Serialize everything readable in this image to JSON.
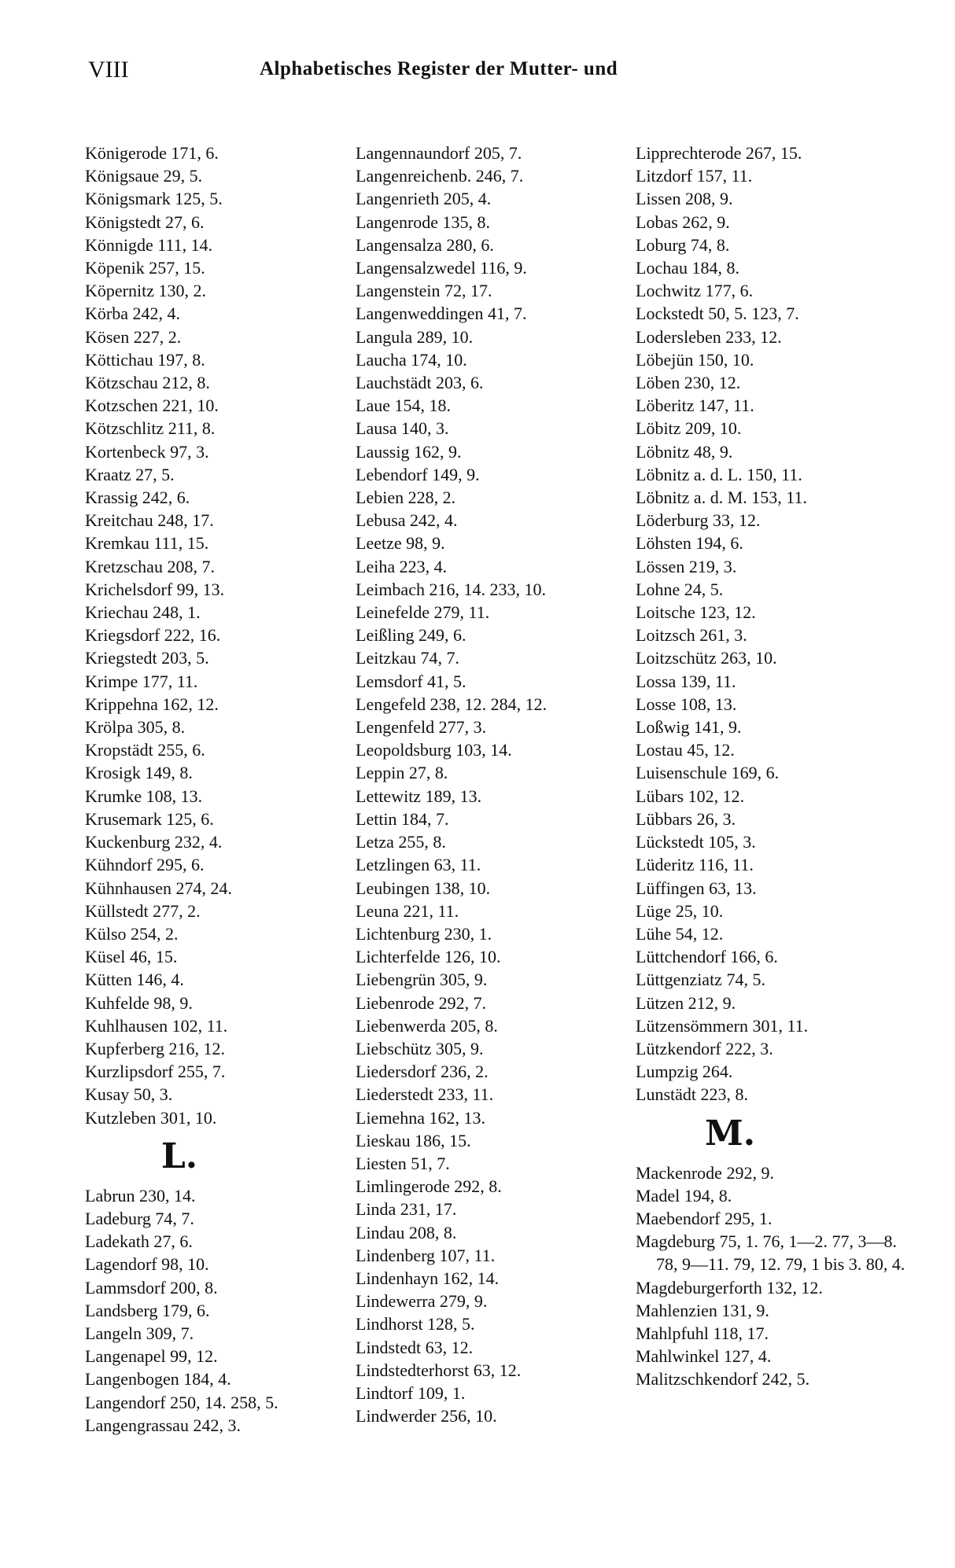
{
  "header": {
    "page_number": "VIII",
    "running_title": "Alphabetisches Register der Mutter- und"
  },
  "columns": [
    {
      "items": [
        {
          "text": "Königerode 171, 6."
        },
        {
          "text": "Königsaue 29, 5."
        },
        {
          "text": "Königsmark 125, 5."
        },
        {
          "text": "Königstedt 27, 6."
        },
        {
          "text": "Könnigde 111, 14."
        },
        {
          "text": "Köpenik 257, 15."
        },
        {
          "text": "Köpernitz 130, 2."
        },
        {
          "text": "Körba 242, 4."
        },
        {
          "text": "Kösen 227, 2."
        },
        {
          "text": "Köttichau 197, 8."
        },
        {
          "text": "Kötzschau 212, 8."
        },
        {
          "text": "Kotzschen 221, 10."
        },
        {
          "text": "Kötzschlitz 211, 8."
        },
        {
          "text": "Kortenbeck 97, 3."
        },
        {
          "text": "Kraatz 27, 5."
        },
        {
          "text": "Krassig 242, 6."
        },
        {
          "text": "Kreitchau 248, 17."
        },
        {
          "text": "Kremkau 111, 15."
        },
        {
          "text": "Kretzschau 208, 7."
        },
        {
          "text": "Krichelsdorf 99, 13."
        },
        {
          "text": "Kriechau 248, 1."
        },
        {
          "text": "Kriegsdorf 222, 16."
        },
        {
          "text": "Kriegstedt 203, 5."
        },
        {
          "text": "Krimpe 177, 11."
        },
        {
          "text": "Krippehna 162, 12."
        },
        {
          "text": "Krölpa 305, 8."
        },
        {
          "text": "Kropstädt 255, 6."
        },
        {
          "text": "Krosigk 149, 8."
        },
        {
          "text": "Krumke 108, 13."
        },
        {
          "text": "Krusemark 125, 6."
        },
        {
          "text": "Kuckenburg 232, 4."
        },
        {
          "text": "Kühndorf 295, 6."
        },
        {
          "text": "Kühnhausen 274, 24."
        },
        {
          "text": "Küllstedt 277, 2."
        },
        {
          "text": "Külso 254, 2."
        },
        {
          "text": "Küsel 46, 15."
        },
        {
          "text": "Kütten 146, 4."
        },
        {
          "text": "Kuhfelde 98, 9."
        },
        {
          "text": "Kuhlhausen 102, 11."
        },
        {
          "text": "Kupferberg 216, 12."
        },
        {
          "text": "Kurzlipsdorf 255, 7."
        },
        {
          "text": "Kusay 50, 3."
        },
        {
          "text": "Kutzleben 301, 10."
        },
        {
          "letter": "L."
        },
        {
          "text": "Labrun 230, 14."
        },
        {
          "text": "Ladeburg 74, 7."
        },
        {
          "text": "Ladekath 27, 6."
        },
        {
          "text": "Lagendorf 98, 10."
        },
        {
          "text": "Lammsdorf 200, 8."
        },
        {
          "text": "Landsberg 179, 6."
        },
        {
          "text": "Langeln 309, 7."
        },
        {
          "text": "Langenapel 99, 12."
        },
        {
          "text": "Langenbogen 184, 4."
        },
        {
          "text": "Langendorf 250, 14. 258, 5."
        },
        {
          "text": "Langengrassau 242, 3."
        }
      ]
    },
    {
      "items": [
        {
          "text": "Langennaundorf 205, 7."
        },
        {
          "text": "Langenreichenb. 246, 7."
        },
        {
          "text": "Langenrieth 205, 4."
        },
        {
          "text": "Langenrode 135, 8."
        },
        {
          "text": "Langensalza 280, 6."
        },
        {
          "text": "Langensalzwedel 116, 9."
        },
        {
          "text": "Langenstein 72, 17."
        },
        {
          "text": "Langenweddingen 41, 7."
        },
        {
          "text": "Langula 289, 10."
        },
        {
          "text": "Laucha 174, 10."
        },
        {
          "text": "Lauchstädt 203, 6."
        },
        {
          "text": "Laue 154, 18."
        },
        {
          "text": "Lausa 140, 3."
        },
        {
          "text": "Laussig 162, 9."
        },
        {
          "text": "Lebendorf 149, 9."
        },
        {
          "text": "Lebien 228, 2."
        },
        {
          "text": "Lebusa 242, 4."
        },
        {
          "text": "Leetze 98, 9."
        },
        {
          "text": "Leiha 223, 4."
        },
        {
          "text": "Leimbach 216, 14. 233, 10."
        },
        {
          "text": "Leinefelde 279, 11."
        },
        {
          "text": "Leißling 249, 6."
        },
        {
          "text": "Leitzkau 74, 7."
        },
        {
          "text": "Lemsdorf 41, 5."
        },
        {
          "text": "Lengefeld 238, 12. 284, 12."
        },
        {
          "text": "Lengenfeld 277, 3."
        },
        {
          "text": "Leopoldsburg 103, 14."
        },
        {
          "text": "Leppin 27, 8."
        },
        {
          "text": "Lettewitz 189, 13."
        },
        {
          "text": "Lettin 184, 7."
        },
        {
          "text": "Letza 255, 8."
        },
        {
          "text": "Letzlingen 63, 11."
        },
        {
          "text": "Leubingen 138, 10."
        },
        {
          "text": "Leuna 221, 11."
        },
        {
          "text": "Lichtenburg 230, 1."
        },
        {
          "text": "Lichterfelde 126, 10."
        },
        {
          "text": "Liebengrün 305, 9."
        },
        {
          "text": "Liebenrode 292, 7."
        },
        {
          "text": "Liebenwerda 205, 8."
        },
        {
          "text": "Liebschütz 305, 9."
        },
        {
          "text": "Liedersdorf 236, 2."
        },
        {
          "text": "Liederstedt 233, 11."
        },
        {
          "text": "Liemehna 162, 13."
        },
        {
          "text": "Lieskau 186, 15."
        },
        {
          "text": "Liesten 51, 7."
        },
        {
          "text": "Limlingerode 292, 8."
        },
        {
          "text": "Linda 231, 17."
        },
        {
          "text": "Lindau 208, 8."
        },
        {
          "text": "Lindenberg 107, 11."
        },
        {
          "text": "Lindenhayn 162, 14."
        },
        {
          "text": "Lindewerra 279, 9."
        },
        {
          "text": "Lindhorst 128, 5."
        },
        {
          "text": "Lindstedt 63, 12."
        },
        {
          "text": "Lindstedterhorst 63, 12."
        },
        {
          "text": "Lindtorf 109, 1."
        },
        {
          "text": "Lindwerder 256, 10."
        }
      ]
    },
    {
      "items": [
        {
          "text": "Lipprechterode 267, 15."
        },
        {
          "text": "Litzdorf 157, 11."
        },
        {
          "text": "Lissen 208, 9."
        },
        {
          "text": "Lobas 262, 9."
        },
        {
          "text": "Loburg 74, 8."
        },
        {
          "text": "Lochau 184, 8."
        },
        {
          "text": "Lochwitz 177, 6."
        },
        {
          "text": "Lockstedt 50, 5. 123, 7."
        },
        {
          "text": "Lodersleben 233, 12."
        },
        {
          "text": "Löbejün 150, 10."
        },
        {
          "text": "Löben 230, 12."
        },
        {
          "text": "Löberitz 147, 11."
        },
        {
          "text": "Löbitz 209, 10."
        },
        {
          "text": "Löbnitz 48, 9."
        },
        {
          "text": "Löbnitz a. d. L. 150, 11."
        },
        {
          "text": "Löbnitz a. d. M. 153, 11."
        },
        {
          "text": "Löderburg 33, 12."
        },
        {
          "text": "Löhsten 194, 6."
        },
        {
          "text": "Lössen 219, 3."
        },
        {
          "text": "Lohne 24, 5."
        },
        {
          "text": "Loitsche 123, 12."
        },
        {
          "text": "Loitzsch 261, 3."
        },
        {
          "text": "Loitzschütz 263, 10."
        },
        {
          "text": "Lossa 139, 11."
        },
        {
          "text": "Losse 108, 13."
        },
        {
          "text": "Loßwig 141, 9."
        },
        {
          "text": "Lostau 45, 12."
        },
        {
          "text": "Luisenschule 169, 6."
        },
        {
          "text": "Lübars 102, 12."
        },
        {
          "text": "Lübbars 26, 3."
        },
        {
          "text": "Lückstedt 105, 3."
        },
        {
          "text": "Lüderitz 116, 11."
        },
        {
          "text": "Lüffingen 63, 13."
        },
        {
          "text": "Lüge 25, 10."
        },
        {
          "text": "Lühe 54, 12."
        },
        {
          "text": "Lüttchendorf 166, 6."
        },
        {
          "text": "Lüttgenziatz 74, 5."
        },
        {
          "text": "Lützen 212, 9."
        },
        {
          "text": "Lützensömmern 301, 11."
        },
        {
          "text": "Lützkendorf 222, 3."
        },
        {
          "text": "Lumpzig 264."
        },
        {
          "text": "Lunstädt 223, 8."
        },
        {
          "letter": "M."
        },
        {
          "text": "Mackenrode 292, 9."
        },
        {
          "text": "Madel 194, 8."
        },
        {
          "text": "Maebendorf 295, 1."
        },
        {
          "text": "Magdeburg 75, 1. 76, 1—2. 77, 3—8. 78, 9—11. 79, 12. 79, 1 bis 3. 80, 4."
        },
        {
          "text": "Magdeburgerforth 132, 12."
        },
        {
          "text": "Mahlenzien 131, 9."
        },
        {
          "text": "Mahlpfuhl 118, 17."
        },
        {
          "text": "Mahlwinkel 127, 4."
        },
        {
          "text": "Malitzschkendorf 242, 5."
        }
      ]
    }
  ]
}
